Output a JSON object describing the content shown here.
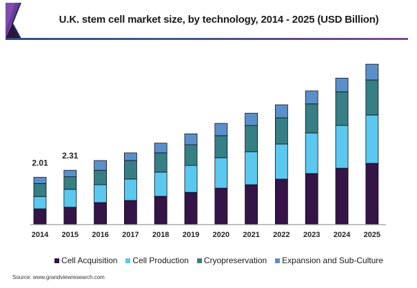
{
  "header": {
    "title": "U.K. stem cell market size, by technology, 2014 - 2025 (USD Billion)",
    "logo_icon": "brand-chevron-logo"
  },
  "source": "Source: www.grandviewresearch.com",
  "colors": {
    "Cell Acquisition": "#351447",
    "Cell Production": "#5ac8ef",
    "Cryopreservation": "#357f85",
    "Expansion and Sub-Culture": "#5b8fc9"
  },
  "chart_data": {
    "type": "bar",
    "stacked": true,
    "title": "U.K. stem cell market size, by technology, 2014 - 2025 (USD Billion)",
    "xlabel": "",
    "ylabel": "",
    "ylim": [
      0,
      7
    ],
    "grid": false,
    "legend_position": "bottom",
    "categories": [
      "2014",
      "2015",
      "2016",
      "2017",
      "2018",
      "2019",
      "2020",
      "2021",
      "2022",
      "2023",
      "2024",
      "2025"
    ],
    "series": [
      {
        "name": "Cell Acquisition",
        "values": [
          0.65,
          0.72,
          0.92,
          1.01,
          1.19,
          1.36,
          1.54,
          1.69,
          1.93,
          2.17,
          2.4,
          2.61
        ]
      },
      {
        "name": "Cell Production",
        "values": [
          0.53,
          0.77,
          0.77,
          0.92,
          1.04,
          1.16,
          1.31,
          1.42,
          1.51,
          1.75,
          1.84,
          2.08
        ]
      },
      {
        "name": "Cryopreservation",
        "values": [
          0.56,
          0.54,
          0.62,
          0.8,
          0.83,
          0.89,
          0.95,
          1.13,
          1.13,
          1.25,
          1.45,
          1.51
        ]
      },
      {
        "name": "Expansion and Sub-Culture",
        "values": [
          0.27,
          0.28,
          0.42,
          0.33,
          0.42,
          0.47,
          0.53,
          0.53,
          0.56,
          0.56,
          0.59,
          0.68
        ]
      }
    ],
    "data_labels": [
      {
        "category": "2014",
        "text": "2.01"
      },
      {
        "category": "2015",
        "text": "2.31"
      }
    ]
  }
}
